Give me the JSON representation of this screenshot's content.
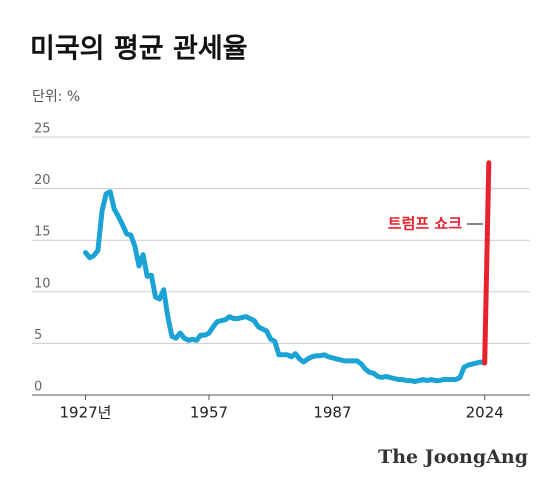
{
  "chart_data": {
    "type": "line",
    "title": "미국의 평균 관세율",
    "subtitle": "단위: %",
    "annotation": "트럼프 쇼크",
    "source": "The JoongAng",
    "series": [
      {
        "color": "#1ba3d6",
        "x": [
          1927,
          1928,
          1929,
          1930,
          1931,
          1932,
          1933,
          1934,
          1935,
          1936,
          1937,
          1938,
          1939,
          1940,
          1941,
          1942,
          1943,
          1944,
          1945,
          1946,
          1947,
          1948,
          1949,
          1950,
          1951,
          1952,
          1953,
          1954,
          1955,
          1956,
          1957,
          1958,
          1959,
          1960,
          1961,
          1962,
          1963,
          1964,
          1965,
          1966,
          1967,
          1968,
          1969,
          1970,
          1971,
          1972,
          1973,
          1974,
          1975,
          1976,
          1977,
          1978,
          1979,
          1980,
          1981,
          1982,
          1983,
          1984,
          1985,
          1986,
          1987,
          1988,
          1989,
          1990,
          1991,
          1992,
          1993,
          1994,
          1995,
          1996,
          1997,
          1998,
          1999,
          2000,
          2001,
          2002,
          2003,
          2004,
          2005,
          2006,
          2007,
          2008,
          2009,
          2010,
          2011,
          2012,
          2013,
          2014,
          2015,
          2016,
          2017,
          2018,
          2019,
          2020,
          2021,
          2022,
          2023,
          2024
        ],
        "values": [
          13.8,
          13.3,
          13.5,
          14,
          17.8,
          19.5,
          19.7,
          18,
          17.3,
          16.5,
          15.6,
          15.5,
          14.4,
          12.5,
          13.6,
          11.5,
          11.6,
          9.5,
          9.3,
          10.2,
          7.6,
          5.7,
          5.5,
          6,
          5.5,
          5.3,
          5.4,
          5.3,
          5.8,
          5.8,
          6,
          6.6,
          7.1,
          7.2,
          7.3,
          7.6,
          7.4,
          7.4,
          7.5,
          7.6,
          7.4,
          7.2,
          6.6,
          6.4,
          6.2,
          5.4,
          5.2,
          3.9,
          3.9,
          3.9,
          3.7,
          4,
          3.5,
          3.2,
          3.5,
          3.7,
          3.8,
          3.8,
          3.9,
          3.7,
          3.6,
          3.5,
          3.4,
          3.3,
          3.3,
          3.3,
          3.3,
          3,
          2.5,
          2.2,
          2.1,
          1.8,
          1.7,
          1.8,
          1.7,
          1.6,
          1.5,
          1.5,
          1.4,
          1.4,
          1.3,
          1.4,
          1.5,
          1.4,
          1.5,
          1.4,
          1.4,
          1.5,
          1.5,
          1.5,
          1.5,
          1.7,
          2.7,
          2.9,
          3,
          3.1,
          3.2,
          3.1
        ]
      },
      {
        "color": "#e8212e",
        "x": [
          2024,
          2025
        ],
        "values": [
          3.1,
          22.5
        ]
      }
    ],
    "xlim": [
      1914,
      2035
    ],
    "xticks": [
      {
        "value": 1927,
        "label": "1927년"
      },
      1957,
      1987,
      2024
    ],
    "ylim": [
      0,
      25
    ],
    "yticks": [
      0,
      5,
      10,
      15,
      20,
      25
    ],
    "grid": true
  }
}
